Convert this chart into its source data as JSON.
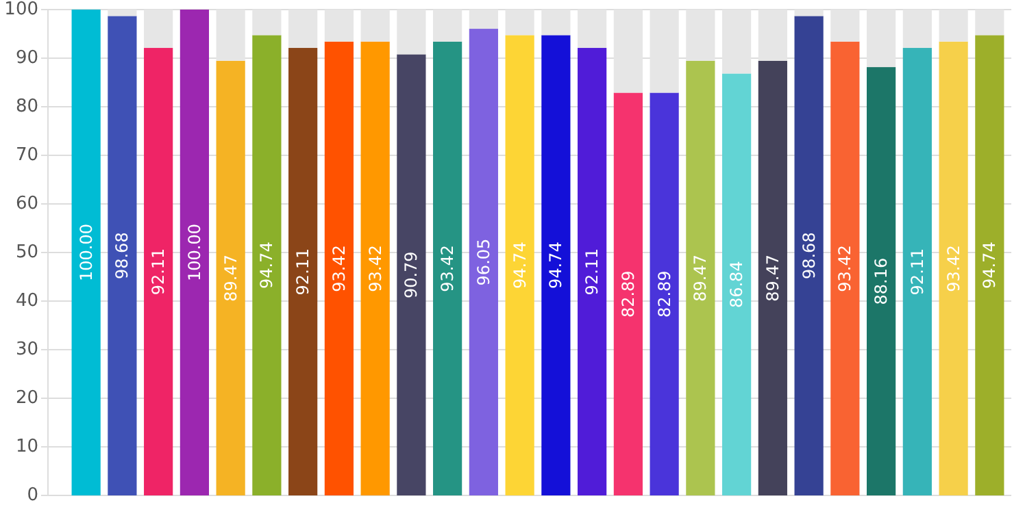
{
  "chart_data": {
    "type": "bar",
    "stacked": true,
    "categories": [
      null,
      null,
      null,
      null,
      null,
      null,
      null,
      null,
      null,
      null,
      null,
      null,
      null,
      null,
      null,
      null,
      null,
      null,
      null,
      null,
      null,
      null,
      null,
      null,
      null,
      null
    ],
    "series": [
      {
        "colors": [
          "#00bcd4",
          "#3f51b5",
          "#ef2466",
          "#9c27b0",
          "#f5b324",
          "#8bb02a",
          "#8b4518",
          "#ff5200",
          "#ff9800",
          "#474564",
          "#259484",
          "#7e62e0",
          "#fdd535",
          "#1410d8",
          "#501cd8",
          "#f5336e",
          "#4a34da",
          "#acc44f",
          "#62d4d4",
          "#44425a",
          "#354294",
          "#f96332",
          "#1c7668",
          "#36b4b8",
          "#f6d04a",
          "#9daf2a"
        ],
        "values": [
          100.0,
          98.68,
          92.11,
          100.0,
          89.47,
          94.74,
          92.11,
          93.42,
          93.42,
          90.79,
          93.42,
          96.05,
          94.74,
          94.74,
          92.11,
          82.89,
          82.89,
          89.47,
          86.84,
          89.47,
          98.68,
          93.42,
          88.16,
          92.11,
          93.42,
          94.74
        ],
        "value_labels": [
          "100.00",
          "98.68",
          "92.11",
          "100.00",
          "89.47",
          "94.74",
          "92.11",
          "93.42",
          "93.42",
          "90.79",
          "93.42",
          "96.05",
          "94.74",
          "94.74",
          "92.11",
          "82.89",
          "82.89",
          "89.47",
          "86.84",
          "89.47",
          "98.68",
          "93.42",
          "88.16",
          "92.11",
          "93.42",
          "94.74"
        ]
      },
      {
        "color": "#e6e6e6",
        "values": [
          0,
          1.32,
          7.89,
          0,
          10.53,
          5.26,
          7.89,
          6.58,
          6.58,
          9.21,
          6.58,
          3.95,
          5.26,
          5.26,
          7.89,
          17.11,
          17.11,
          10.53,
          13.16,
          10.53,
          1.32,
          6.58,
          11.84,
          7.89,
          6.58,
          5.26
        ]
      }
    ],
    "ylim": [
      0,
      100
    ],
    "yticks": [
      0,
      10,
      20,
      30,
      40,
      50,
      60,
      70,
      80,
      90,
      100
    ],
    "grid": "y",
    "tick_labels": "y"
  }
}
